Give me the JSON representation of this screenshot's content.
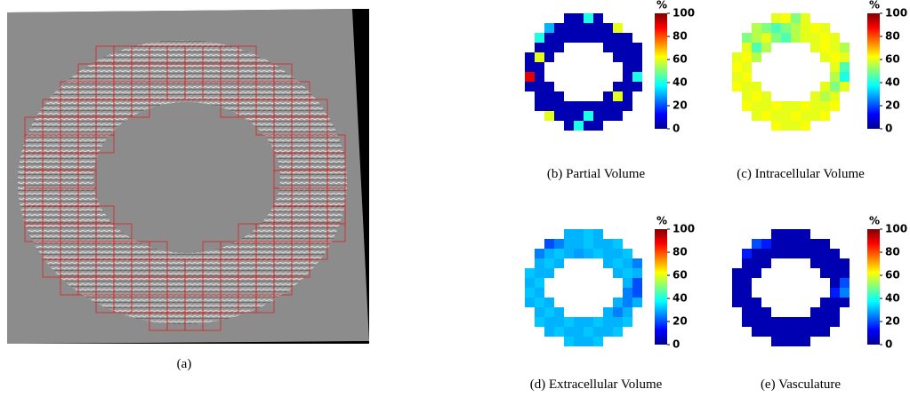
{
  "figure": {
    "panel_a": {
      "caption": "(a)"
    },
    "panels": [
      {
        "caption": "(b) Partial Volume",
        "colorbar": {
          "label": "%",
          "clim": [
            0,
            100
          ],
          "ticks": [
            0,
            20,
            40,
            60,
            80,
            100
          ]
        },
        "grid": [
          [
            null,
            null,
            null,
            null,
            5,
            5,
            40,
            5,
            null,
            null,
            null,
            null
          ],
          [
            null,
            null,
            30,
            5,
            5,
            5,
            5,
            5,
            5,
            60,
            null,
            null
          ],
          [
            null,
            40,
            5,
            5,
            5,
            5,
            5,
            5,
            5,
            5,
            5,
            null
          ],
          [
            null,
            5,
            5,
            5,
            null,
            null,
            null,
            null,
            5,
            5,
            5,
            5
          ],
          [
            5,
            60,
            5,
            null,
            null,
            null,
            null,
            null,
            null,
            5,
            5,
            5
          ],
          [
            5,
            5,
            null,
            null,
            null,
            null,
            null,
            null,
            null,
            null,
            5,
            5
          ],
          [
            90,
            5,
            null,
            null,
            null,
            null,
            null,
            null,
            null,
            null,
            5,
            40
          ],
          [
            5,
            5,
            5,
            null,
            null,
            null,
            null,
            null,
            null,
            5,
            5,
            5
          ],
          [
            null,
            5,
            5,
            5,
            null,
            null,
            null,
            null,
            5,
            60,
            5,
            null
          ],
          [
            null,
            5,
            5,
            5,
            5,
            5,
            5,
            5,
            5,
            5,
            5,
            null
          ],
          [
            null,
            null,
            60,
            5,
            5,
            5,
            40,
            5,
            5,
            5,
            null,
            null
          ],
          [
            null,
            null,
            null,
            null,
            5,
            40,
            5,
            5,
            null,
            null,
            null,
            null
          ]
        ]
      },
      {
        "caption": "(c) Intracellular Volume",
        "colorbar": {
          "label": "%",
          "clim": [
            0,
            100
          ],
          "ticks": [
            0,
            20,
            40,
            60,
            80,
            100
          ]
        },
        "grid": [
          [
            null,
            null,
            null,
            null,
            60,
            62,
            50,
            60,
            null,
            null,
            null,
            null
          ],
          [
            null,
            null,
            55,
            50,
            45,
            50,
            55,
            60,
            62,
            60,
            null,
            null
          ],
          [
            null,
            50,
            55,
            60,
            50,
            45,
            55,
            60,
            60,
            62,
            60,
            null
          ],
          [
            null,
            60,
            45,
            55,
            null,
            null,
            null,
            null,
            60,
            62,
            60,
            55
          ],
          [
            60,
            62,
            55,
            null,
            null,
            null,
            null,
            null,
            null,
            60,
            62,
            60
          ],
          [
            62,
            60,
            null,
            null,
            null,
            null,
            null,
            null,
            null,
            null,
            60,
            45
          ],
          [
            60,
            62,
            null,
            null,
            null,
            null,
            null,
            null,
            null,
            null,
            55,
            40
          ],
          [
            62,
            60,
            60,
            null,
            null,
            null,
            null,
            null,
            null,
            60,
            50,
            60
          ],
          [
            null,
            60,
            62,
            60,
            null,
            null,
            null,
            null,
            60,
            55,
            60,
            null
          ],
          [
            null,
            62,
            60,
            60,
            62,
            60,
            60,
            62,
            60,
            60,
            62,
            null
          ],
          [
            null,
            null,
            60,
            62,
            60,
            60,
            62,
            60,
            60,
            62,
            null,
            null
          ],
          [
            null,
            null,
            null,
            null,
            62,
            60,
            60,
            62,
            null,
            null,
            null,
            null
          ]
        ]
      },
      {
        "caption": "(d) Extracellular Volume",
        "colorbar": {
          "label": "%",
          "clim": [
            0,
            100
          ],
          "ticks": [
            0,
            20,
            40,
            60,
            80,
            100
          ]
        },
        "grid": [
          [
            null,
            null,
            null,
            null,
            30,
            30,
            32,
            30,
            null,
            null,
            null,
            null
          ],
          [
            null,
            null,
            20,
            25,
            30,
            30,
            32,
            30,
            30,
            32,
            null,
            null
          ],
          [
            null,
            25,
            30,
            32,
            30,
            28,
            30,
            32,
            30,
            30,
            32,
            null
          ],
          [
            null,
            30,
            32,
            30,
            null,
            null,
            null,
            null,
            30,
            32,
            30,
            25
          ],
          [
            32,
            30,
            30,
            null,
            null,
            null,
            null,
            null,
            null,
            30,
            32,
            30
          ],
          [
            30,
            32,
            null,
            null,
            null,
            null,
            null,
            null,
            null,
            null,
            30,
            20
          ],
          [
            32,
            30,
            null,
            null,
            null,
            null,
            null,
            null,
            null,
            null,
            25,
            20
          ],
          [
            30,
            32,
            30,
            null,
            null,
            null,
            null,
            null,
            null,
            30,
            25,
            30
          ],
          [
            null,
            30,
            32,
            30,
            null,
            null,
            null,
            null,
            30,
            25,
            30,
            null
          ],
          [
            null,
            32,
            30,
            30,
            32,
            30,
            30,
            32,
            30,
            30,
            32,
            null
          ],
          [
            null,
            null,
            30,
            32,
            30,
            30,
            32,
            30,
            30,
            32,
            null,
            null
          ],
          [
            null,
            null,
            null,
            null,
            32,
            30,
            30,
            32,
            null,
            null,
            null,
            null
          ]
        ]
      },
      {
        "caption": "(e) Vasculature",
        "colorbar": {
          "label": "%",
          "clim": [
            0,
            100
          ],
          "ticks": [
            0,
            20,
            40,
            60,
            80,
            100
          ]
        },
        "grid": [
          [
            null,
            null,
            null,
            null,
            5,
            5,
            5,
            5,
            null,
            null,
            null,
            null
          ],
          [
            null,
            null,
            20,
            15,
            5,
            5,
            5,
            5,
            5,
            5,
            null,
            null
          ],
          [
            null,
            15,
            5,
            5,
            5,
            5,
            5,
            5,
            5,
            5,
            5,
            null
          ],
          [
            null,
            5,
            5,
            5,
            null,
            null,
            null,
            null,
            5,
            5,
            5,
            5
          ],
          [
            5,
            5,
            5,
            null,
            null,
            null,
            null,
            null,
            null,
            5,
            5,
            5
          ],
          [
            5,
            5,
            null,
            null,
            null,
            null,
            null,
            null,
            null,
            null,
            5,
            20
          ],
          [
            5,
            5,
            null,
            null,
            null,
            null,
            null,
            null,
            null,
            null,
            15,
            25
          ],
          [
            5,
            5,
            5,
            null,
            null,
            null,
            null,
            null,
            null,
            5,
            5,
            5
          ],
          [
            null,
            5,
            5,
            5,
            null,
            null,
            null,
            null,
            5,
            5,
            5,
            null
          ],
          [
            null,
            5,
            5,
            5,
            5,
            5,
            5,
            5,
            5,
            5,
            5,
            null
          ],
          [
            null,
            null,
            5,
            5,
            5,
            5,
            5,
            5,
            5,
            5,
            null,
            null
          ],
          [
            null,
            null,
            null,
            null,
            5,
            5,
            5,
            5,
            null,
            null,
            null,
            null
          ]
        ]
      }
    ]
  }
}
